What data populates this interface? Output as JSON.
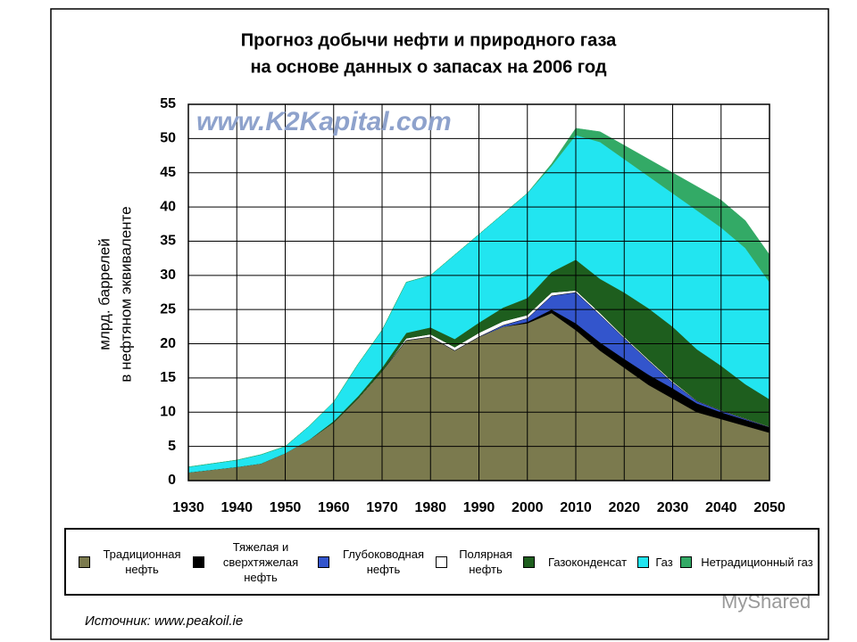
{
  "chart_data": {
    "type": "stacked-area",
    "title": [
      "Прогноз добычи нефти и природного газа",
      "на основе данных о запасах на 2006 год"
    ],
    "watermark": "www.K2Kapital.com",
    "ylabel": [
      "млрд. баррелей",
      "в нефтяном эквиваленте"
    ],
    "source": "Источник: www.peakoil.ie",
    "site_watermark": "MyShared",
    "x": [
      1930,
      1935,
      1940,
      1945,
      1950,
      1955,
      1960,
      1965,
      1970,
      1975,
      1980,
      1985,
      1990,
      1995,
      2000,
      2005,
      2010,
      2015,
      2020,
      2025,
      2030,
      2035,
      2040,
      2045,
      2050
    ],
    "xlim": [
      1930,
      2050
    ],
    "xticks": [
      1930,
      1940,
      1950,
      1960,
      1970,
      1980,
      1990,
      2000,
      2010,
      2020,
      2030,
      2040,
      2050
    ],
    "ylim": [
      0,
      55
    ],
    "yticks": [
      0,
      5,
      10,
      15,
      20,
      25,
      30,
      35,
      40,
      45,
      50,
      55
    ],
    "grid": true,
    "series": [
      {
        "name": "Традиционная нефть",
        "color": "#7b7a4e",
        "values": [
          1.2,
          1.6,
          2,
          2.5,
          4,
          6,
          8.5,
          12,
          16,
          20.5,
          21,
          19,
          21,
          22.5,
          23,
          24.5,
          22,
          19,
          16.5,
          14,
          12,
          10,
          9,
          8,
          7
        ]
      },
      {
        "name": "Тяжелая и сверхтяжелая нефть",
        "color": "#000000",
        "values": [
          0,
          0,
          0,
          0,
          0,
          0,
          0,
          0,
          0,
          0,
          0,
          0,
          0,
          0,
          0.2,
          0.5,
          1,
          1.2,
          1.3,
          1.5,
          1.5,
          1.3,
          1,
          0.9,
          0.8
        ]
      },
      {
        "name": "Глубоководная нефть",
        "color": "#3355cc",
        "values": [
          0,
          0,
          0,
          0,
          0,
          0,
          0,
          0,
          0,
          0,
          0,
          0,
          0,
          0.2,
          0.5,
          2,
          4.5,
          4,
          3,
          2,
          0.8,
          0.3,
          0.2,
          0.1,
          0
        ]
      },
      {
        "name": "Полярная нефть",
        "color": "#ffffff",
        "values": [
          0,
          0,
          0,
          0,
          0,
          0,
          0,
          0,
          0,
          0.3,
          0.4,
          0.5,
          0.6,
          0.6,
          0.5,
          0.5,
          0.3,
          0.3,
          0.2,
          0.2,
          0.2,
          0.1,
          0.1,
          0.1,
          0.1
        ]
      },
      {
        "name": "Газоконденсат",
        "color": "#1e5e1e",
        "values": [
          0,
          0,
          0,
          0,
          0,
          0,
          0.2,
          0.3,
          0.5,
          0.8,
          1,
          1.2,
          1.5,
          2,
          2.5,
          3,
          4.5,
          5,
          6.5,
          7.5,
          8,
          7.5,
          6.5,
          5,
          4
        ]
      },
      {
        "name": "Газ",
        "color": "#22e5f0",
        "values": [
          0.8,
          0.9,
          1,
          1.3,
          1,
          2,
          2.8,
          4.7,
          5.5,
          7.4,
          7.6,
          12.3,
          12.9,
          13.7,
          15.3,
          15.5,
          18.2,
          20,
          19.5,
          19.3,
          19.5,
          20.3,
          20.2,
          19.9,
          17.1
        ]
      },
      {
        "name": "Нетрадиционный газ",
        "color": "#33aa66",
        "values": [
          0,
          0,
          0,
          0,
          0,
          0,
          0,
          0,
          0,
          0,
          0,
          0,
          0,
          0,
          0,
          0.3,
          1,
          1.5,
          2,
          2.5,
          3,
          3.5,
          4,
          4,
          4
        ]
      }
    ]
  }
}
